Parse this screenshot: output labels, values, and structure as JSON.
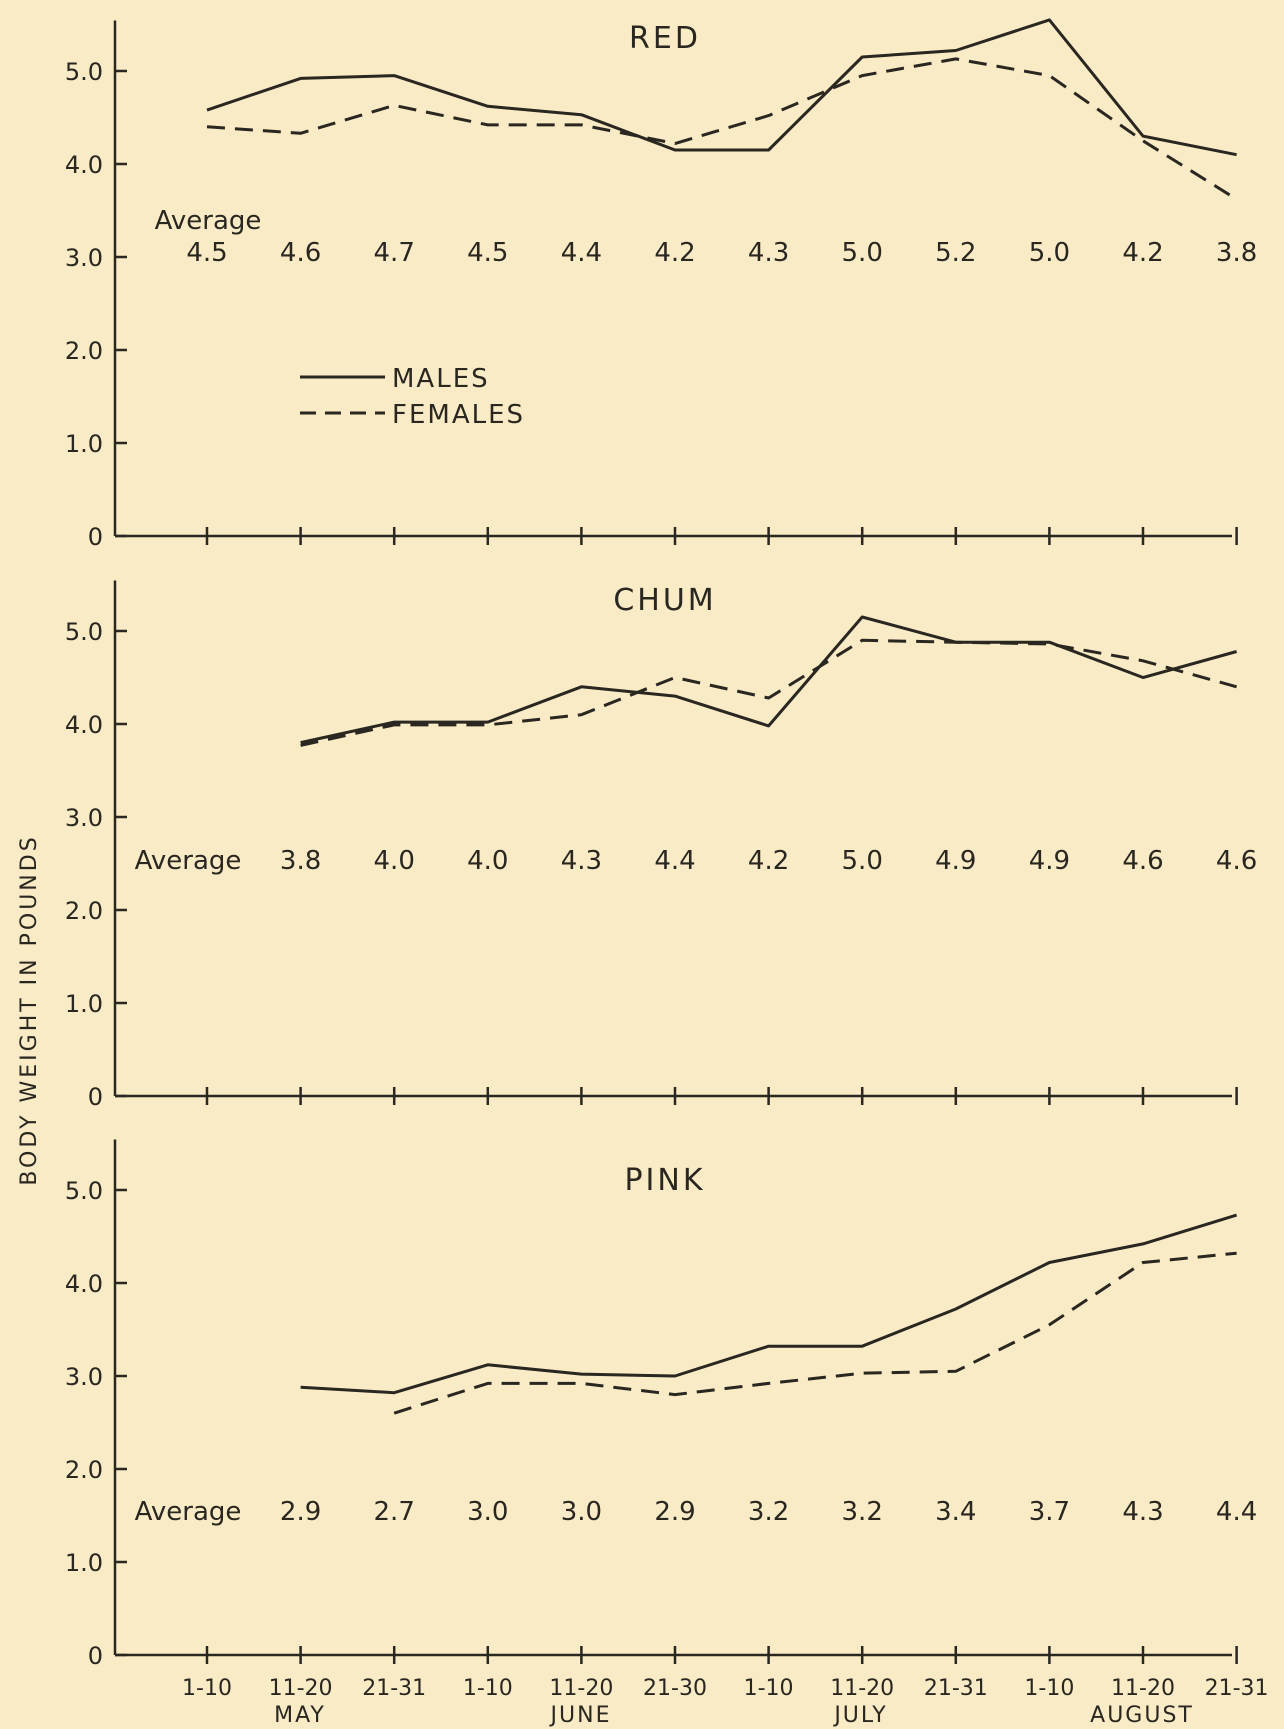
{
  "y_axis_label": "BODY WEIGHT IN POUNDS",
  "average_label": "Average",
  "legend": {
    "males": "MALES",
    "females": "FEMALES"
  },
  "chart_data": {
    "type": "line",
    "ylabel": "BODY WEIGHT IN POUNDS",
    "y_ticks": [
      "0",
      "1.0",
      "2.0",
      "3.0",
      "4.0",
      "5.0"
    ],
    "ylim": [
      0,
      5.5
    ],
    "categories": [
      "1-10",
      "11-20",
      "21-31",
      "1-10",
      "11-20",
      "21-30",
      "1-10",
      "11-20",
      "21-31",
      "1-10",
      "11-20",
      "21-31"
    ],
    "months": [
      "MAY",
      "JUNE",
      "JULY",
      "AUGUST"
    ],
    "legend_position": "upper-left of top panel",
    "line_styles": {
      "males": "solid",
      "females": "dashed"
    },
    "panels": [
      {
        "title": "RED",
        "averages": [
          "4.5",
          "4.6",
          "4.7",
          "4.5",
          "4.4",
          "4.2",
          "4.3",
          "5.0",
          "5.2",
          "5.0",
          "4.2",
          "3.8"
        ],
        "series": [
          {
            "name": "MALES",
            "values": [
              4.58,
              4.92,
              4.95,
              4.62,
              4.53,
              4.15,
              4.15,
              5.15,
              5.22,
              5.55,
              4.3,
              4.1
            ]
          },
          {
            "name": "FEMALES",
            "values": [
              4.4,
              4.33,
              4.63,
              4.42,
              4.42,
              4.22,
              4.52,
              4.95,
              5.13,
              4.95,
              4.25,
              3.62
            ]
          }
        ]
      },
      {
        "title": "CHUM",
        "averages": [
          "3.8",
          "4.0",
          "4.0",
          "4.3",
          "4.4",
          "4.2",
          "5.0",
          "4.9",
          "4.9",
          "4.6",
          "4.6"
        ],
        "series": [
          {
            "name": "MALES",
            "values": [
              null,
              3.8,
              4.02,
              4.02,
              4.4,
              4.3,
              3.98,
              5.15,
              4.88,
              4.88,
              4.5,
              4.78
            ]
          },
          {
            "name": "FEMALES",
            "values": [
              null,
              3.77,
              3.99,
              3.99,
              4.1,
              4.5,
              4.28,
              4.9,
              4.88,
              4.86,
              4.68,
              4.4
            ]
          }
        ]
      },
      {
        "title": "PINK",
        "averages": [
          "2.9",
          "2.7",
          "3.0",
          "3.0",
          "2.9",
          "3.2",
          "3.2",
          "3.4",
          "3.7",
          "4.3",
          "4.4"
        ],
        "series": [
          {
            "name": "MALES",
            "values": [
              null,
              2.88,
              2.82,
              3.12,
              3.02,
              3.0,
              3.32,
              3.32,
              3.72,
              4.22,
              4.42,
              4.73
            ]
          },
          {
            "name": "FEMALES",
            "values": [
              null,
              null,
              2.6,
              2.92,
              2.92,
              2.8,
              2.92,
              3.03,
              3.05,
              3.55,
              4.22,
              4.32
            ]
          }
        ]
      }
    ]
  }
}
